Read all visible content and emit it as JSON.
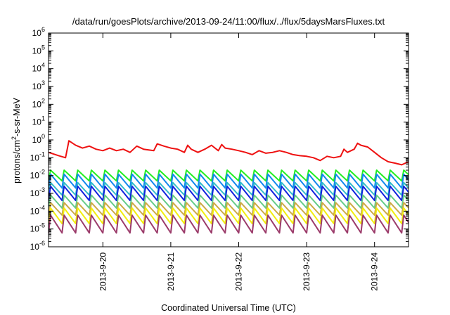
{
  "chart_data": {
    "type": "line",
    "title": "/data/run/goesPlots/archive/2013-09-24/11:00/flux/../flux/5daysMarsFluxes.txt",
    "xlabel": "Coordinated Universal Time (UTC)",
    "ylabel_parts": {
      "pre": "protons/cm",
      "sup": "2",
      "post": "-s-sr-MeV"
    },
    "yscale": "log",
    "ylim": [
      1e-06,
      1000000.0
    ],
    "xlim": [
      19.2,
      24.5
    ],
    "x_ticks": [
      {
        "value": 20,
        "label": "2013-9-20"
      },
      {
        "value": 21,
        "label": "2013-9-21"
      },
      {
        "value": 22,
        "label": "2013-9-22"
      },
      {
        "value": 23,
        "label": "2013-9-23"
      },
      {
        "value": 24,
        "label": "2013-9-24"
      }
    ],
    "y_ticks": [
      {
        "value": 1e-06,
        "base": "10",
        "exp": "-6"
      },
      {
        "value": 1e-05,
        "base": "10",
        "exp": "-5"
      },
      {
        "value": 0.0001,
        "base": "10",
        "exp": "-4"
      },
      {
        "value": 0.001,
        "base": "10",
        "exp": "-3"
      },
      {
        "value": 0.01,
        "base": "10",
        "exp": "-2"
      },
      {
        "value": 0.1,
        "base": "10",
        "exp": "-1"
      },
      {
        "value": 1,
        "base": "10",
        "exp": "0"
      },
      {
        "value": 10,
        "base": "10",
        "exp": "1"
      },
      {
        "value": 100,
        "base": "10",
        "exp": "2"
      },
      {
        "value": 1000,
        "base": "10",
        "exp": "3"
      },
      {
        "value": 10000,
        "base": "10",
        "exp": "4"
      },
      {
        "value": 100000,
        "base": "10",
        "exp": "5"
      },
      {
        "value": 1000000,
        "base": "10",
        "exp": "6"
      }
    ],
    "grid": false,
    "legend": "none",
    "series": [
      {
        "color": "#ee1111",
        "x": [
          19.2,
          19.35,
          19.45,
          19.5,
          19.6,
          19.7,
          19.8,
          19.9,
          20.0,
          20.1,
          20.2,
          20.3,
          20.4,
          20.5,
          20.6,
          20.75,
          20.8,
          20.9,
          21.0,
          21.1,
          21.2,
          21.25,
          21.3,
          21.4,
          21.5,
          21.6,
          21.7,
          21.75,
          21.8,
          21.9,
          22.0,
          22.1,
          22.2,
          22.3,
          22.4,
          22.5,
          22.6,
          22.7,
          22.8,
          22.9,
          23.0,
          23.1,
          23.2,
          23.3,
          23.4,
          23.5,
          23.55,
          23.6,
          23.7,
          23.75,
          23.8,
          23.9,
          24.0,
          24.1,
          24.2,
          24.3,
          24.4,
          24.5
        ],
        "y": [
          0.2,
          0.13,
          0.1,
          0.9,
          0.5,
          0.35,
          0.45,
          0.3,
          0.25,
          0.35,
          0.25,
          0.3,
          0.2,
          0.45,
          0.3,
          0.25,
          0.6,
          0.45,
          0.35,
          0.3,
          0.2,
          0.5,
          0.3,
          0.2,
          0.3,
          0.5,
          0.25,
          0.55,
          0.35,
          0.3,
          0.25,
          0.2,
          0.15,
          0.25,
          0.18,
          0.2,
          0.25,
          0.2,
          0.15,
          0.13,
          0.12,
          0.1,
          0.07,
          0.12,
          0.1,
          0.12,
          0.3,
          0.2,
          0.3,
          0.65,
          0.5,
          0.4,
          0.2,
          0.1,
          0.06,
          0.05,
          0.04,
          0.06
        ]
      },
      {
        "color": "#22ee22",
        "cycle": 0.2,
        "low": 0.005,
        "high": 0.02
      },
      {
        "color": "#1188ee",
        "cycle": 0.2,
        "low": 0.002,
        "high": 0.012
      },
      {
        "color": "#33bbcc",
        "cycle": 0.2,
        "low": 0.0008,
        "high": 0.004
      },
      {
        "color": "#1122dd",
        "cycle": 0.2,
        "low": 0.0004,
        "high": 0.0025
      },
      {
        "color": "#66cc88",
        "cycle": 0.2,
        "low": 0.00015,
        "high": 0.0008
      },
      {
        "color": "#ccaa44",
        "cycle": 0.2,
        "low": 6e-05,
        "high": 0.0003
      },
      {
        "color": "#f2ee10",
        "cycle": 0.2,
        "low": 2e-05,
        "high": 0.00015
      },
      {
        "color": "#9b3b6a",
        "cycle": 0.2,
        "low": 6e-06,
        "high": 6e-05
      }
    ]
  }
}
